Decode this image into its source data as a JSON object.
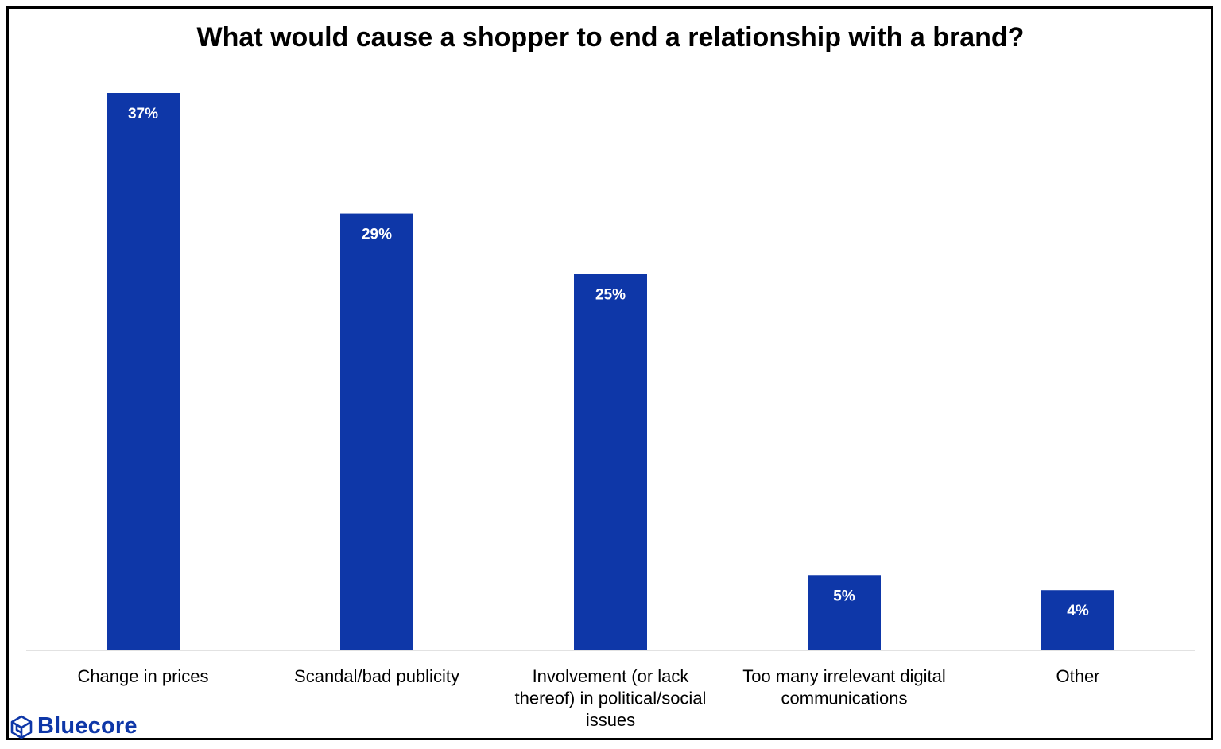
{
  "chart_data": {
    "type": "bar",
    "title": "What would cause a shopper to end a relationship with a brand?",
    "categories": [
      [
        "Change in prices"
      ],
      [
        "Scandal/bad publicity"
      ],
      [
        "Involvement (or lack",
        "thereof) in political/social",
        "issues"
      ],
      [
        "Too many irrelevant digital",
        "communications"
      ],
      [
        "Other"
      ]
    ],
    "values": [
      37,
      29,
      25,
      5,
      4
    ],
    "value_labels": [
      "37%",
      "29%",
      "25%",
      "5%",
      "4%"
    ],
    "ylim": [
      0,
      37
    ],
    "grid": false,
    "bar_color": "#0E37A8",
    "axis_color": "#D9D9D9"
  },
  "branding": {
    "logo_icon": "cube-hexagon-icon",
    "logo_text": "Bluecore",
    "logo_color": "#0E37A8"
  }
}
